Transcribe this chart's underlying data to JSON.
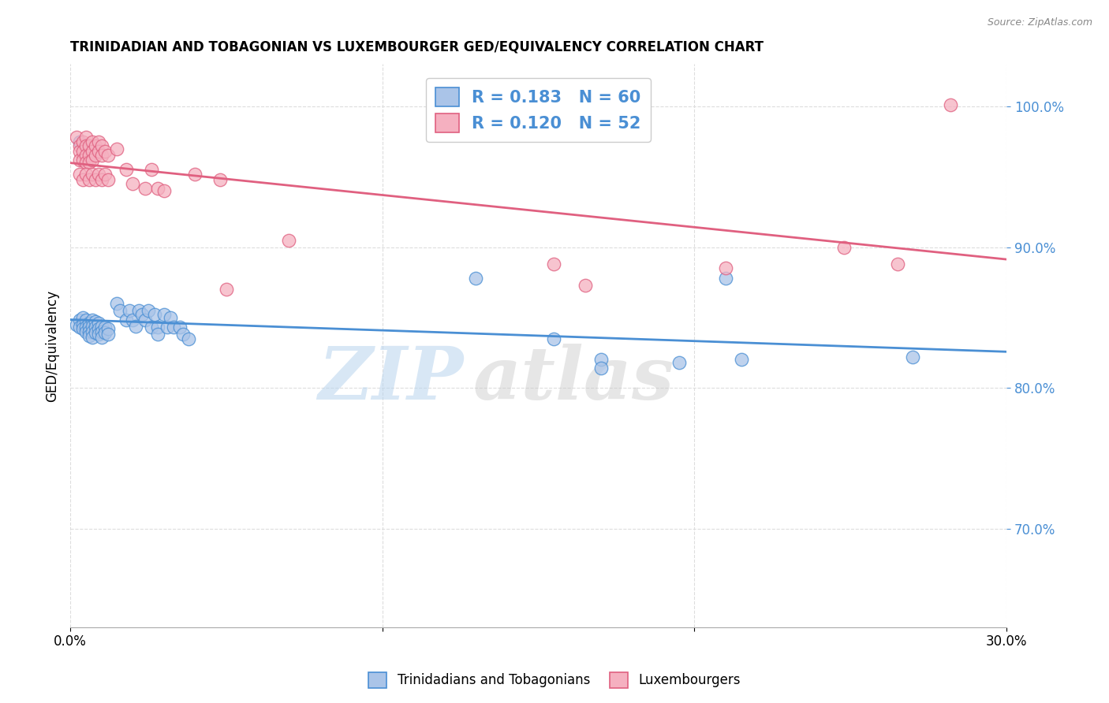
{
  "title": "TRINIDADIAN AND TOBAGONIAN VS LUXEMBOURGER GED/EQUIVALENCY CORRELATION CHART",
  "source": "Source: ZipAtlas.com",
  "ylabel": "GED/Equivalency",
  "ytick_values": [
    0.7,
    0.8,
    0.9,
    1.0
  ],
  "xlim": [
    0.0,
    0.3
  ],
  "ylim": [
    0.63,
    1.03
  ],
  "legend_blue_r": "0.183",
  "legend_blue_n": "60",
  "legend_pink_r": "0.120",
  "legend_pink_n": "52",
  "blue_color": "#aac4e8",
  "pink_color": "#f5b0c0",
  "blue_line_color": "#4a8fd4",
  "pink_line_color": "#e06080",
  "legend_text_color": "#4a8fd4",
  "blue_scatter": [
    [
      0.002,
      0.845
    ],
    [
      0.003,
      0.848
    ],
    [
      0.003,
      0.843
    ],
    [
      0.004,
      0.85
    ],
    [
      0.004,
      0.845
    ],
    [
      0.004,
      0.842
    ],
    [
      0.005,
      0.848
    ],
    [
      0.005,
      0.843
    ],
    [
      0.005,
      0.84
    ],
    [
      0.006,
      0.846
    ],
    [
      0.006,
      0.843
    ],
    [
      0.006,
      0.84
    ],
    [
      0.006,
      0.837
    ],
    [
      0.007,
      0.848
    ],
    [
      0.007,
      0.844
    ],
    [
      0.007,
      0.84
    ],
    [
      0.007,
      0.836
    ],
    [
      0.008,
      0.847
    ],
    [
      0.008,
      0.843
    ],
    [
      0.008,
      0.839
    ],
    [
      0.009,
      0.846
    ],
    [
      0.009,
      0.842
    ],
    [
      0.009,
      0.838
    ],
    [
      0.01,
      0.844
    ],
    [
      0.01,
      0.84
    ],
    [
      0.01,
      0.836
    ],
    [
      0.011,
      0.843
    ],
    [
      0.011,
      0.839
    ],
    [
      0.012,
      0.842
    ],
    [
      0.012,
      0.838
    ],
    [
      0.003,
      0.975
    ],
    [
      0.015,
      0.86
    ],
    [
      0.016,
      0.855
    ],
    [
      0.018,
      0.848
    ],
    [
      0.019,
      0.855
    ],
    [
      0.02,
      0.848
    ],
    [
      0.021,
      0.844
    ],
    [
      0.022,
      0.855
    ],
    [
      0.023,
      0.852
    ],
    [
      0.024,
      0.848
    ],
    [
      0.025,
      0.855
    ],
    [
      0.026,
      0.843
    ],
    [
      0.027,
      0.852
    ],
    [
      0.028,
      0.843
    ],
    [
      0.028,
      0.838
    ],
    [
      0.03,
      0.852
    ],
    [
      0.031,
      0.843
    ],
    [
      0.032,
      0.85
    ],
    [
      0.033,
      0.843
    ],
    [
      0.035,
      0.843
    ],
    [
      0.036,
      0.838
    ],
    [
      0.038,
      0.835
    ],
    [
      0.13,
      0.878
    ],
    [
      0.155,
      0.835
    ],
    [
      0.17,
      0.82
    ],
    [
      0.17,
      0.814
    ],
    [
      0.195,
      0.818
    ],
    [
      0.21,
      0.878
    ],
    [
      0.215,
      0.82
    ],
    [
      0.27,
      0.822
    ]
  ],
  "pink_scatter": [
    [
      0.002,
      0.978
    ],
    [
      0.003,
      0.972
    ],
    [
      0.003,
      0.968
    ],
    [
      0.003,
      0.962
    ],
    [
      0.004,
      0.975
    ],
    [
      0.004,
      0.968
    ],
    [
      0.004,
      0.962
    ],
    [
      0.005,
      0.978
    ],
    [
      0.005,
      0.972
    ],
    [
      0.005,
      0.965
    ],
    [
      0.005,
      0.96
    ],
    [
      0.006,
      0.972
    ],
    [
      0.006,
      0.965
    ],
    [
      0.006,
      0.96
    ],
    [
      0.007,
      0.975
    ],
    [
      0.007,
      0.968
    ],
    [
      0.007,
      0.962
    ],
    [
      0.008,
      0.972
    ],
    [
      0.008,
      0.965
    ],
    [
      0.009,
      0.975
    ],
    [
      0.009,
      0.968
    ],
    [
      0.01,
      0.972
    ],
    [
      0.01,
      0.965
    ],
    [
      0.011,
      0.968
    ],
    [
      0.012,
      0.965
    ],
    [
      0.003,
      0.952
    ],
    [
      0.004,
      0.948
    ],
    [
      0.005,
      0.952
    ],
    [
      0.006,
      0.948
    ],
    [
      0.007,
      0.952
    ],
    [
      0.008,
      0.948
    ],
    [
      0.009,
      0.952
    ],
    [
      0.01,
      0.948
    ],
    [
      0.011,
      0.952
    ],
    [
      0.012,
      0.948
    ],
    [
      0.015,
      0.97
    ],
    [
      0.018,
      0.955
    ],
    [
      0.02,
      0.945
    ],
    [
      0.024,
      0.942
    ],
    [
      0.026,
      0.955
    ],
    [
      0.028,
      0.942
    ],
    [
      0.03,
      0.94
    ],
    [
      0.04,
      0.952
    ],
    [
      0.048,
      0.948
    ],
    [
      0.05,
      0.87
    ],
    [
      0.155,
      0.888
    ],
    [
      0.165,
      0.873
    ],
    [
      0.21,
      0.885
    ],
    [
      0.248,
      0.9
    ],
    [
      0.265,
      0.888
    ],
    [
      0.282,
      1.001
    ],
    [
      0.07,
      0.905
    ]
  ],
  "watermark_zip": "ZIP",
  "watermark_atlas": "atlas",
  "background_color": "#ffffff",
  "grid_color": "#dddddd"
}
